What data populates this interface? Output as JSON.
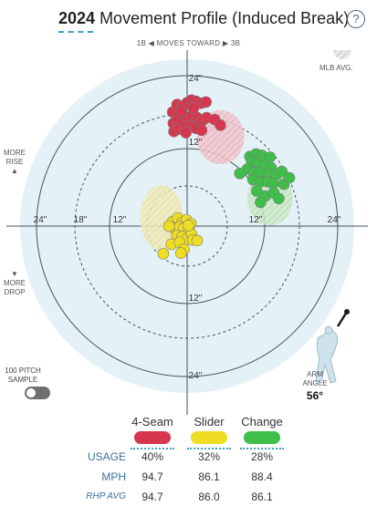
{
  "header": {
    "year": "2024",
    "title": "Movement Profile (Induced Break)",
    "help": "?"
  },
  "direction": {
    "left": "1B",
    "text": "MOVES TOWARD",
    "right": "3B"
  },
  "legend": {
    "mlb_avg": "MLB AVG."
  },
  "side": {
    "more_rise": [
      "MORE",
      "RISE"
    ],
    "more_drop": [
      "MORE",
      "DROP"
    ],
    "rise_arrow": "▲",
    "drop_arrow": "▼"
  },
  "rings": {
    "h_left": [
      "24\"",
      "18\"",
      "12\""
    ],
    "h_right": [
      "12\"",
      "24\""
    ],
    "v_top": [
      "24\"",
      "12\""
    ],
    "v_bottom": [
      "12\"",
      "24\""
    ]
  },
  "sample": {
    "label": [
      "100 PITCH",
      "SAMPLE"
    ]
  },
  "arm": {
    "label": [
      "ARM",
      "ANGLE"
    ],
    "value": "56°"
  },
  "colors": {
    "four_seam": "#d6374f",
    "slider": "#eedd22",
    "change": "#3fbf4a",
    "plot_bg": "#e4f1f6"
  },
  "pitches": [
    {
      "name": "4-Seam",
      "color": "#d6374f",
      "usage": "40%",
      "mph": "94.7",
      "rhp_avg": "94.7"
    },
    {
      "name": "Slider",
      "color": "#eedd22",
      "usage": "32%",
      "mph": "86.1",
      "rhp_avg": "86.0"
    },
    {
      "name": "Change",
      "color": "#3fbf4a",
      "usage": "28%",
      "mph": "88.4",
      "rhp_avg": "86.1"
    }
  ],
  "rows": {
    "usage": "USAGE",
    "mph": "MPH",
    "rhp_avg": "RHP AVG"
  },
  "chart_data": {
    "type": "scatter",
    "xlabel": "",
    "ylabel": "",
    "xlim": [
      -27,
      27
    ],
    "ylim": [
      -27,
      27
    ],
    "series": [
      {
        "name": "4-Seam",
        "points": [
          [
            -2.3,
            18.2
          ],
          [
            -1.6,
            19.4
          ],
          [
            -0.8,
            19.1
          ],
          [
            0.0,
            19.7
          ],
          [
            0.7,
            20.1
          ],
          [
            1.4,
            19.9
          ],
          [
            2.2,
            19.6
          ],
          [
            3.0,
            19.8
          ],
          [
            -2.2,
            16.4
          ],
          [
            -1.5,
            17.1
          ],
          [
            -0.7,
            16.7
          ],
          [
            0.1,
            17.2
          ],
          [
            0.8,
            17.6
          ],
          [
            1.6,
            17.3
          ],
          [
            2.4,
            16.8
          ],
          [
            3.1,
            17.3
          ],
          [
            -2.1,
            15.1
          ],
          [
            -1.3,
            15.5
          ],
          [
            -0.4,
            15.8
          ],
          [
            0.5,
            15.9
          ],
          [
            1.4,
            15.6
          ],
          [
            2.3,
            15.3
          ],
          [
            -0.9,
            18.3
          ],
          [
            1.0,
            18.8
          ],
          [
            4.4,
            17.0
          ],
          [
            5.3,
            16.1
          ],
          [
            -0.2,
            14.9
          ]
        ],
        "avg_ellipse": {
          "cx": 5.3,
          "cy": 14.2,
          "rx": 3.8,
          "ry": 4.3
        }
      },
      {
        "name": "Slider",
        "points": [
          [
            -2.3,
            0.7
          ],
          [
            -1.5,
            1.3
          ],
          [
            -0.8,
            0.6
          ],
          [
            -0.1,
            1.0
          ],
          [
            0.6,
            0.4
          ],
          [
            -2.0,
            -0.4
          ],
          [
            -1.2,
            -0.1
          ],
          [
            -0.5,
            -0.3
          ],
          [
            0.3,
            -0.6
          ],
          [
            -1.6,
            -1.5
          ],
          [
            -0.8,
            -1.7
          ],
          [
            -0.1,
            -2.1
          ],
          [
            0.7,
            -1.3
          ],
          [
            -2.5,
            -2.9
          ],
          [
            -1.2,
            -2.6
          ],
          [
            -0.5,
            -3.7
          ],
          [
            0.9,
            -2.2
          ],
          [
            -3.8,
            -4.4
          ],
          [
            -1.0,
            -4.3
          ],
          [
            1.6,
            -2.3
          ],
          [
            -2.9,
            0.0
          ],
          [
            0.2,
            0.1
          ]
        ],
        "avg_ellipse": {
          "cx": -4.1,
          "cy": 1.3,
          "rx": 3.4,
          "ry": 5.2
        }
      },
      {
        "name": "Change",
        "points": [
          [
            10.0,
            11.1
          ],
          [
            11.0,
            11.5
          ],
          [
            11.9,
            11.3
          ],
          [
            13.2,
            11.0
          ],
          [
            10.3,
            10.3
          ],
          [
            11.2,
            10.0
          ],
          [
            12.3,
            9.6
          ],
          [
            13.4,
            9.3
          ],
          [
            9.6,
            9.1
          ],
          [
            10.6,
            8.5
          ],
          [
            11.6,
            8.5
          ],
          [
            12.9,
            8.3
          ],
          [
            14.2,
            8.2
          ],
          [
            15.1,
            8.7
          ],
          [
            10.5,
            7.4
          ],
          [
            11.7,
            7.1
          ],
          [
            12.8,
            7.1
          ],
          [
            13.7,
            6.8
          ],
          [
            15.4,
            6.7
          ],
          [
            11.1,
            5.6
          ],
          [
            12.4,
            4.8
          ],
          [
            13.8,
            5.3
          ],
          [
            11.7,
            3.8
          ],
          [
            14.6,
            4.4
          ],
          [
            16.3,
            7.7
          ],
          [
            8.4,
            8.4
          ]
        ],
        "avg_ellipse": {
          "cx": 13.2,
          "cy": 4.4,
          "rx": 3.6,
          "ry": 4.3
        }
      }
    ],
    "rings": [
      12,
      18,
      24
    ],
    "grid": true,
    "legend": "none"
  }
}
